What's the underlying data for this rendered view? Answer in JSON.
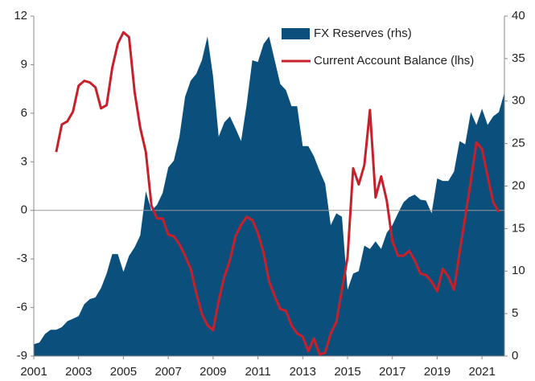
{
  "chart_data": {
    "type": "area_line",
    "x": [
      2001,
      2001.25,
      2001.5,
      2001.75,
      2002,
      2002.25,
      2002.5,
      2002.75,
      2003,
      2003.25,
      2003.5,
      2003.75,
      2004,
      2004.25,
      2004.5,
      2004.75,
      2005,
      2005.25,
      2005.5,
      2005.75,
      2006,
      2006.25,
      2006.5,
      2006.75,
      2007,
      2007.25,
      2007.5,
      2007.75,
      2008,
      2008.25,
      2008.5,
      2008.75,
      2009,
      2009.25,
      2009.5,
      2009.75,
      2010,
      2010.25,
      2010.5,
      2010.75,
      2011,
      2011.25,
      2011.5,
      2011.75,
      2012,
      2012.25,
      2012.5,
      2012.75,
      2013,
      2013.25,
      2013.5,
      2013.75,
      2014,
      2014.25,
      2014.5,
      2014.75,
      2015,
      2015.25,
      2015.5,
      2015.75,
      2016,
      2016.25,
      2016.5,
      2016.75,
      2017,
      2017.25,
      2017.5,
      2017.75,
      2018,
      2018.25,
      2018.5,
      2018.75,
      2019,
      2019.25,
      2019.5,
      2019.75,
      2020,
      2020.25,
      2020.5,
      2020.75,
      2021,
      2021.25,
      2021.5,
      2021.75,
      2022
    ],
    "series": [
      {
        "name": "FX Reserves (rhs)",
        "color": "#0b4f7c",
        "axis": "y2",
        "kind": "area",
        "values": [
          1.4,
          1.6,
          2.6,
          3.1,
          3.1,
          3.4,
          4.1,
          4.4,
          4.7,
          6.1,
          6.7,
          6.9,
          8.0,
          9.7,
          12.0,
          12.0,
          9.9,
          11.8,
          12.8,
          14.2,
          19.4,
          17.1,
          17.8,
          19.2,
          22.2,
          23.0,
          25.8,
          30.5,
          32.4,
          33.2,
          34.8,
          37.6,
          32.9,
          25.8,
          27.5,
          28.2,
          26.8,
          25.3,
          29.6,
          34.8,
          34.6,
          36.7,
          37.6,
          34.8,
          32.0,
          31.3,
          29.4,
          29.4,
          24.7,
          24.7,
          23.5,
          21.8,
          20.3,
          15.4,
          16.8,
          16.4,
          7.8,
          9.7,
          10.0,
          13.0,
          12.6,
          13.5,
          12.6,
          14.5,
          15.4,
          16.8,
          18.1,
          18.7,
          19.0,
          18.4,
          18.3,
          16.8,
          20.9,
          20.6,
          20.6,
          21.7,
          25.3,
          24.9,
          28.7,
          27.2,
          29.1,
          27.2,
          28.2,
          28.7,
          31.0
        ]
      },
      {
        "name": "Current Account Balance (lhs)",
        "color": "#c8202a",
        "axis": "y",
        "kind": "line",
        "values": [
          null,
          null,
          null,
          null,
          3.6,
          5.3,
          5.5,
          6.1,
          7.7,
          8.0,
          7.9,
          7.6,
          6.3,
          6.5,
          8.8,
          10.3,
          11.0,
          10.7,
          7.3,
          5.1,
          3.6,
          0.3,
          -0.5,
          -0.5,
          -1.5,
          -1.6,
          -2.1,
          -2.8,
          -3.6,
          -5.1,
          -6.4,
          -7.1,
          -7.4,
          -5.6,
          -4.1,
          -3.1,
          -1.6,
          -0.9,
          -0.4,
          -0.6,
          -1.4,
          -2.6,
          -4.4,
          -5.3,
          -6.1,
          -6.2,
          -7.1,
          -7.6,
          -7.8,
          -8.7,
          -7.9,
          -8.9,
          -8.8,
          -7.6,
          -6.9,
          -4.9,
          -2.9,
          2.6,
          1.6,
          2.8,
          6.2,
          0.8,
          2.1,
          0.6,
          -1.9,
          -2.8,
          -2.8,
          -2.5,
          -3.1,
          -3.9,
          -4.0,
          -4.4,
          -5.0,
          -3.6,
          -4.1,
          -4.9,
          -2.6,
          -0.4,
          1.8,
          4.2,
          3.8,
          2.1,
          0.5,
          -0.1,
          null
        ]
      }
    ],
    "xlim": [
      2001,
      2022
    ],
    "xticks": [
      2001,
      2003,
      2005,
      2007,
      2009,
      2011,
      2013,
      2015,
      2017,
      2019,
      2021
    ],
    "ylim": [
      -9,
      12
    ],
    "yticks": [
      -9,
      -6,
      -3,
      0,
      3,
      6,
      9,
      12
    ],
    "y2lim": [
      0,
      40
    ],
    "y2ticks": [
      0,
      5,
      10,
      15,
      20,
      25,
      30,
      35,
      40
    ],
    "zero_line": true,
    "legend": "top-right"
  }
}
